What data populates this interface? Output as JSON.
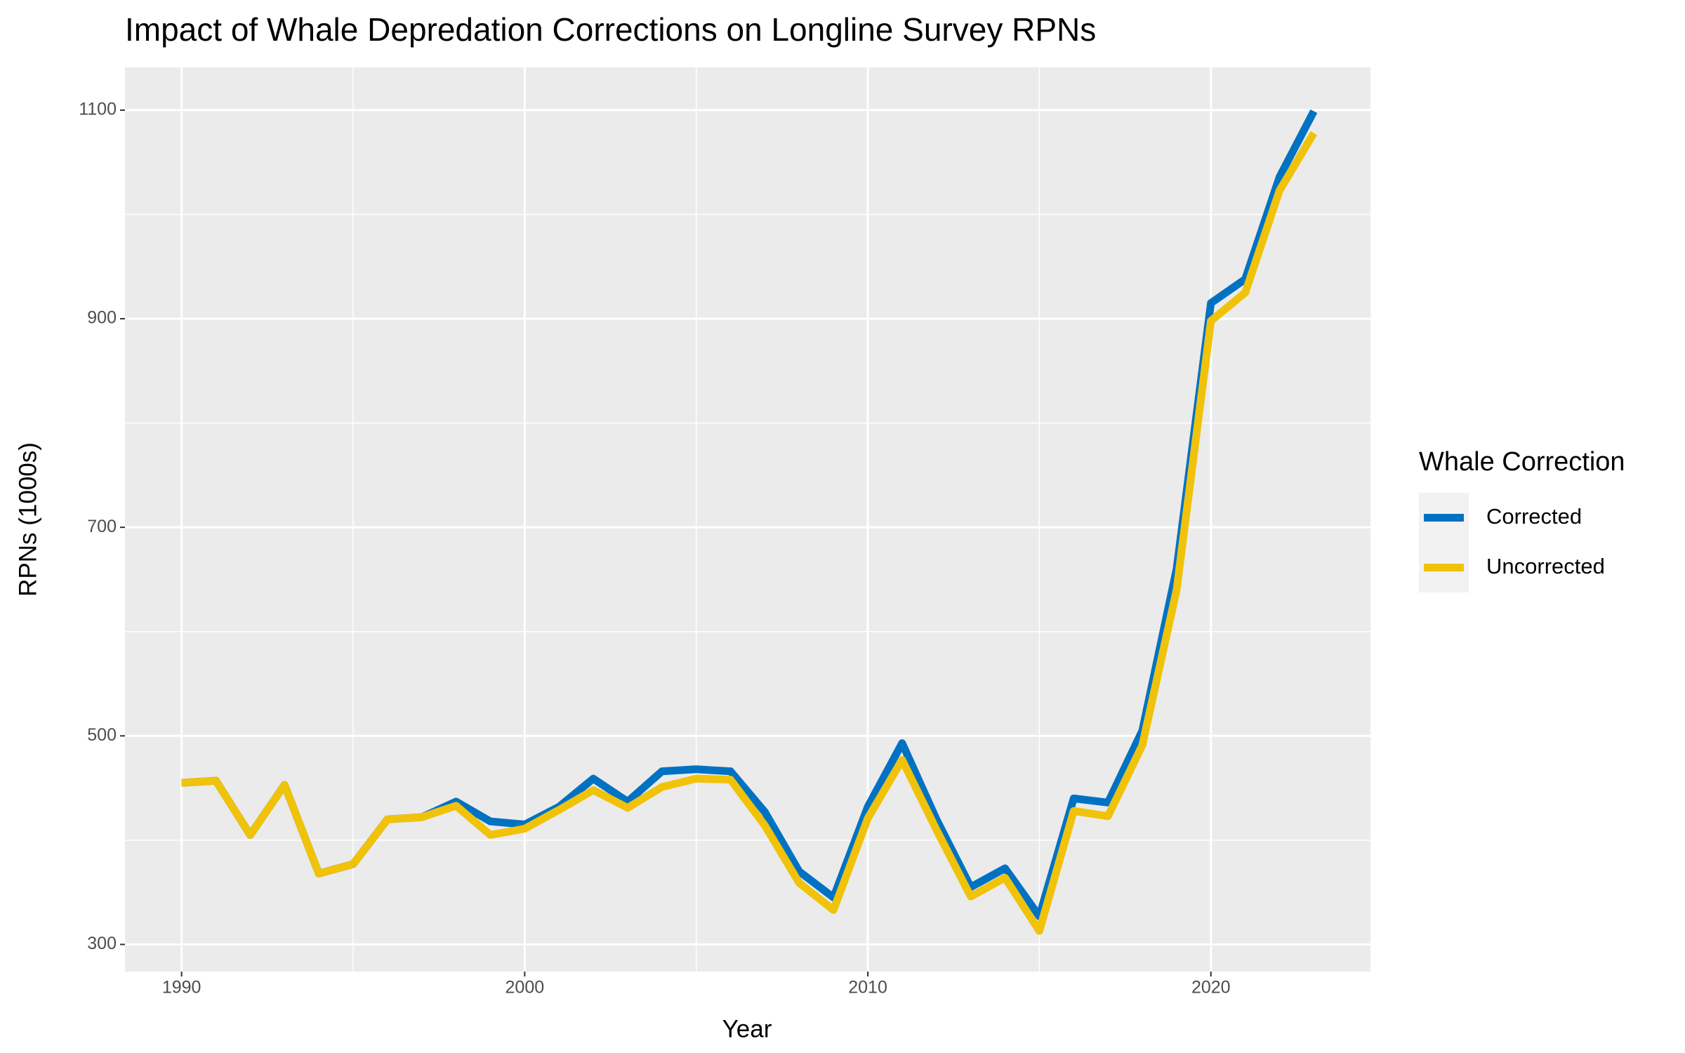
{
  "chart_data": {
    "type": "line",
    "title": "Impact of Whale Depredation Corrections on Longline Survey RPNs",
    "x_label": "Year",
    "y_label": "RPNs (1000s)",
    "legend_title": "Whale Correction",
    "legend": "right",
    "grid": true,
    "x": [
      1990,
      1991,
      1992,
      1993,
      1994,
      1995,
      1996,
      1997,
      1998,
      1999,
      2000,
      2001,
      2002,
      2003,
      2004,
      2005,
      2006,
      2007,
      2008,
      2009,
      2010,
      2011,
      2012,
      2013,
      2014,
      2015,
      2016,
      2017,
      2018,
      2019,
      2020,
      2021,
      2022,
      2023
    ],
    "series": [
      {
        "name": "Corrected",
        "color": "#0072c3",
        "values": [
          455,
          457,
          405,
          453,
          368,
          377,
          420,
          422,
          437,
          418,
          415,
          432,
          459,
          437,
          466,
          468,
          466,
          427,
          370,
          345,
          432,
          493,
          420,
          355,
          373,
          327,
          440,
          436,
          505,
          660,
          915,
          938,
          1036,
          1099
        ]
      },
      {
        "name": "Uncorrected",
        "color": "#f0c20a",
        "values": [
          455,
          457,
          405,
          453,
          368,
          377,
          420,
          422,
          433,
          405,
          411,
          429,
          448,
          431,
          451,
          459,
          458,
          414,
          359,
          333,
          421,
          477,
          410,
          346,
          364,
          313,
          428,
          423,
          491,
          640,
          898,
          925,
          1023,
          1078
        ]
      }
    ],
    "xlim": [
      1988.35,
      2024.65
    ],
    "xticks": [
      1990,
      2000,
      2010,
      2020
    ],
    "ylim": [
      274,
      1141
    ],
    "yticks": [
      300,
      500,
      700,
      900,
      1100
    ]
  }
}
